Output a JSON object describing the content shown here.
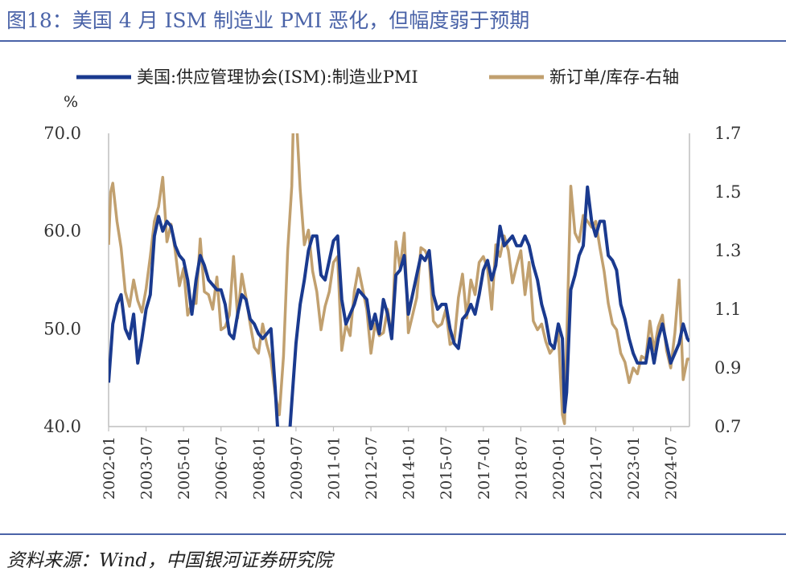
{
  "title": "图18：美国 4 月 ISM 制造业 PMI 恶化，但幅度弱于预期",
  "source": "资料来源：Wind，中国银河证券研究院",
  "chart_data": {
    "type": "line",
    "left_unit_label": "%",
    "legend": [
      {
        "name": "美国:供应管理协会(ISM):制造业PMI",
        "color": "#1a3a8f"
      },
      {
        "name": "新订单/库存-右轴",
        "color": "#c1a06f"
      }
    ],
    "y_left": {
      "min": 40,
      "max": 70,
      "ticks": [
        "40.0",
        "50.0",
        "60.0",
        "70.0"
      ]
    },
    "y_right": {
      "min": 0.7,
      "max": 1.7,
      "ticks": [
        "0.7",
        "0.9",
        "1.1",
        "1.3",
        "1.5",
        "1.7"
      ]
    },
    "x_ticks": [
      "2002-01",
      "2003-07",
      "2005-01",
      "2006-07",
      "2008-01",
      "2009-07",
      "2011-01",
      "2012-07",
      "2014-01",
      "2015-07",
      "2017-01",
      "2018-07",
      "2020-01",
      "2021-07",
      "2023-01",
      "2024-07"
    ],
    "x_range": [
      "2002-01",
      "2025-04"
    ],
    "series": [
      {
        "name": "美国:供应管理协会(ISM):制造业PMI",
        "axis": "left",
        "points": [
          [
            "2002-01",
            44.5
          ],
          [
            "2002-03",
            50.5
          ],
          [
            "2002-05",
            52.5
          ],
          [
            "2002-07",
            53.5
          ],
          [
            "2002-09",
            50.0
          ],
          [
            "2002-11",
            49.0
          ],
          [
            "2003-01",
            51.5
          ],
          [
            "2003-03",
            46.5
          ],
          [
            "2003-05",
            49.0
          ],
          [
            "2003-07",
            52.0
          ],
          [
            "2003-09",
            53.5
          ],
          [
            "2003-11",
            59.5
          ],
          [
            "2004-01",
            61.5
          ],
          [
            "2004-03",
            60.0
          ],
          [
            "2004-05",
            61.0
          ],
          [
            "2004-07",
            60.5
          ],
          [
            "2004-09",
            58.5
          ],
          [
            "2004-11",
            57.5
          ],
          [
            "2005-01",
            57.0
          ],
          [
            "2005-03",
            55.0
          ],
          [
            "2005-05",
            51.5
          ],
          [
            "2005-07",
            55.0
          ],
          [
            "2005-09",
            57.5
          ],
          [
            "2005-11",
            56.5
          ],
          [
            "2006-01",
            55.0
          ],
          [
            "2006-03",
            54.5
          ],
          [
            "2006-05",
            54.0
          ],
          [
            "2006-07",
            54.0
          ],
          [
            "2006-09",
            52.5
          ],
          [
            "2006-11",
            49.5
          ],
          [
            "2007-01",
            49.0
          ],
          [
            "2007-03",
            51.5
          ],
          [
            "2007-05",
            53.5
          ],
          [
            "2007-07",
            53.0
          ],
          [
            "2007-09",
            51.0
          ],
          [
            "2007-11",
            50.5
          ],
          [
            "2008-01",
            49.5
          ],
          [
            "2008-03",
            49.0
          ],
          [
            "2008-05",
            49.5
          ],
          [
            "2008-07",
            50.0
          ],
          [
            "2008-09",
            44.0
          ],
          [
            "2008-11",
            37.0
          ],
          [
            "2009-01",
            35.5
          ],
          [
            "2009-03",
            36.5
          ],
          [
            "2009-05",
            42.5
          ],
          [
            "2009-07",
            48.5
          ],
          [
            "2009-09",
            52.5
          ],
          [
            "2009-11",
            55.0
          ],
          [
            "2010-01",
            58.0
          ],
          [
            "2010-03",
            59.5
          ],
          [
            "2010-05",
            59.5
          ],
          [
            "2010-07",
            55.5
          ],
          [
            "2010-09",
            55.0
          ],
          [
            "2010-11",
            57.0
          ],
          [
            "2011-01",
            59.0
          ],
          [
            "2011-03",
            59.5
          ],
          [
            "2011-05",
            53.0
          ],
          [
            "2011-07",
            50.5
          ],
          [
            "2011-09",
            51.5
          ],
          [
            "2011-11",
            52.5
          ],
          [
            "2012-01",
            54.0
          ],
          [
            "2012-03",
            53.5
          ],
          [
            "2012-05",
            53.0
          ],
          [
            "2012-07",
            50.0
          ],
          [
            "2012-09",
            51.5
          ],
          [
            "2012-11",
            49.5
          ],
          [
            "2013-01",
            53.0
          ],
          [
            "2013-03",
            51.5
          ],
          [
            "2013-05",
            49.0
          ],
          [
            "2013-07",
            55.5
          ],
          [
            "2013-09",
            56.0
          ],
          [
            "2013-11",
            57.5
          ],
          [
            "2014-01",
            51.5
          ],
          [
            "2014-03",
            53.5
          ],
          [
            "2014-05",
            55.5
          ],
          [
            "2014-07",
            57.5
          ],
          [
            "2014-09",
            57.0
          ],
          [
            "2014-11",
            58.0
          ],
          [
            "2015-01",
            53.5
          ],
          [
            "2015-03",
            52.0
          ],
          [
            "2015-05",
            52.5
          ],
          [
            "2015-07",
            52.5
          ],
          [
            "2015-09",
            50.0
          ],
          [
            "2015-11",
            48.5
          ],
          [
            "2016-01",
            48.0
          ],
          [
            "2016-03",
            51.0
          ],
          [
            "2016-05",
            51.5
          ],
          [
            "2016-07",
            52.5
          ],
          [
            "2016-09",
            51.5
          ],
          [
            "2016-11",
            53.5
          ],
          [
            "2017-01",
            56.0
          ],
          [
            "2017-03",
            57.0
          ],
          [
            "2017-05",
            55.0
          ],
          [
            "2017-07",
            56.5
          ],
          [
            "2017-09",
            60.5
          ],
          [
            "2017-11",
            58.5
          ],
          [
            "2018-01",
            59.0
          ],
          [
            "2018-03",
            59.5
          ],
          [
            "2018-05",
            58.5
          ],
          [
            "2018-07",
            58.5
          ],
          [
            "2018-09",
            59.5
          ],
          [
            "2018-11",
            58.5
          ],
          [
            "2019-01",
            56.5
          ],
          [
            "2019-03",
            55.0
          ],
          [
            "2019-05",
            52.5
          ],
          [
            "2019-07",
            51.0
          ],
          [
            "2019-09",
            48.5
          ],
          [
            "2019-11",
            48.0
          ],
          [
            "2020-01",
            50.5
          ],
          [
            "2020-03",
            49.0
          ],
          [
            "2020-04",
            41.5
          ],
          [
            "2020-05",
            43.5
          ],
          [
            "2020-07",
            54.0
          ],
          [
            "2020-09",
            55.5
          ],
          [
            "2020-11",
            57.5
          ],
          [
            "2021-01",
            58.5
          ],
          [
            "2021-03",
            64.5
          ],
          [
            "2021-05",
            61.0
          ],
          [
            "2021-07",
            59.5
          ],
          [
            "2021-09",
            61.0
          ],
          [
            "2021-11",
            61.0
          ],
          [
            "2022-01",
            57.5
          ],
          [
            "2022-03",
            57.0
          ],
          [
            "2022-05",
            56.0
          ],
          [
            "2022-07",
            52.5
          ],
          [
            "2022-09",
            51.0
          ],
          [
            "2022-11",
            49.0
          ],
          [
            "2023-01",
            47.5
          ],
          [
            "2023-03",
            46.5
          ],
          [
            "2023-05",
            46.5
          ],
          [
            "2023-07",
            46.5
          ],
          [
            "2023-09",
            49.0
          ],
          [
            "2023-11",
            46.5
          ],
          [
            "2024-01",
            49.0
          ],
          [
            "2024-03",
            50.5
          ],
          [
            "2024-05",
            48.5
          ],
          [
            "2024-07",
            46.5
          ],
          [
            "2024-09",
            47.5
          ],
          [
            "2024-11",
            48.5
          ],
          [
            "2025-01",
            50.5
          ],
          [
            "2025-03",
            49.0
          ],
          [
            "2025-04",
            48.7
          ]
        ]
      },
      {
        "name": "新订单/库存-右轴",
        "axis": "right",
        "points": [
          [
            "2002-01",
            1.32
          ],
          [
            "2002-02",
            1.5
          ],
          [
            "2002-03",
            1.53
          ],
          [
            "2002-05",
            1.4
          ],
          [
            "2002-07",
            1.31
          ],
          [
            "2002-09",
            1.16
          ],
          [
            "2002-11",
            1.11
          ],
          [
            "2003-01",
            1.2
          ],
          [
            "2003-03",
            1.13
          ],
          [
            "2003-05",
            1.09
          ],
          [
            "2003-07",
            1.17
          ],
          [
            "2003-09",
            1.28
          ],
          [
            "2003-11",
            1.4
          ],
          [
            "2004-01",
            1.45
          ],
          [
            "2004-03",
            1.55
          ],
          [
            "2004-05",
            1.33
          ],
          [
            "2004-07",
            1.39
          ],
          [
            "2004-09",
            1.3
          ],
          [
            "2004-11",
            1.18
          ],
          [
            "2005-01",
            1.24
          ],
          [
            "2005-03",
            1.08
          ],
          [
            "2005-05",
            1.12
          ],
          [
            "2005-07",
            1.12
          ],
          [
            "2005-09",
            1.34
          ],
          [
            "2005-11",
            1.16
          ],
          [
            "2006-01",
            1.15
          ],
          [
            "2006-03",
            1.1
          ],
          [
            "2006-05",
            1.21
          ],
          [
            "2006-07",
            1.03
          ],
          [
            "2006-09",
            1.04
          ],
          [
            "2006-11",
            1.08
          ],
          [
            "2007-01",
            1.28
          ],
          [
            "2007-03",
            1.07
          ],
          [
            "2007-05",
            1.22
          ],
          [
            "2007-07",
            1.14
          ],
          [
            "2007-09",
            1.05
          ],
          [
            "2007-11",
            0.97
          ],
          [
            "2008-01",
            0.95
          ],
          [
            "2008-03",
            1.05
          ],
          [
            "2008-05",
            0.98
          ],
          [
            "2008-07",
            0.93
          ],
          [
            "2008-09",
            0.81
          ],
          [
            "2008-11",
            0.74
          ],
          [
            "2009-01",
            0.94
          ],
          [
            "2009-03",
            1.3
          ],
          [
            "2009-05",
            1.52
          ],
          [
            "2009-06",
            1.82
          ],
          [
            "2009-07",
            1.78
          ],
          [
            "2009-09",
            1.51
          ],
          [
            "2009-11",
            1.32
          ],
          [
            "2010-01",
            1.37
          ],
          [
            "2010-03",
            1.23
          ],
          [
            "2010-05",
            1.16
          ],
          [
            "2010-07",
            1.03
          ],
          [
            "2010-09",
            1.11
          ],
          [
            "2010-11",
            1.16
          ],
          [
            "2011-01",
            1.26
          ],
          [
            "2011-03",
            1.28
          ],
          [
            "2011-05",
            0.96
          ],
          [
            "2011-07",
            1.05
          ],
          [
            "2011-09",
            1.01
          ],
          [
            "2011-11",
            1.16
          ],
          [
            "2012-01",
            1.24
          ],
          [
            "2012-03",
            1.17
          ],
          [
            "2012-05",
            1.1
          ],
          [
            "2012-07",
            0.95
          ],
          [
            "2012-09",
            1.05
          ],
          [
            "2012-11",
            1.01
          ],
          [
            "2013-01",
            1.02
          ],
          [
            "2013-03",
            1.1
          ],
          [
            "2013-05",
            1.0
          ],
          [
            "2013-07",
            1.33
          ],
          [
            "2013-09",
            1.24
          ],
          [
            "2013-11",
            1.36
          ],
          [
            "2014-01",
            1.02
          ],
          [
            "2014-03",
            1.08
          ],
          [
            "2014-05",
            1.14
          ],
          [
            "2014-07",
            1.31
          ],
          [
            "2014-09",
            1.3
          ],
          [
            "2014-11",
            1.27
          ],
          [
            "2015-01",
            1.06
          ],
          [
            "2015-03",
            1.04
          ],
          [
            "2015-05",
            1.05
          ],
          [
            "2015-07",
            1.1
          ],
          [
            "2015-09",
            0.98
          ],
          [
            "2015-11",
            0.99
          ],
          [
            "2016-01",
            1.14
          ],
          [
            "2016-03",
            1.22
          ],
          [
            "2016-05",
            1.07
          ],
          [
            "2016-07",
            1.2
          ],
          [
            "2016-09",
            1.15
          ],
          [
            "2016-11",
            1.26
          ],
          [
            "2017-01",
            1.28
          ],
          [
            "2017-03",
            1.24
          ],
          [
            "2017-05",
            1.1
          ],
          [
            "2017-07",
            1.32
          ],
          [
            "2017-09",
            1.28
          ],
          [
            "2017-11",
            1.35
          ],
          [
            "2018-01",
            1.3
          ],
          [
            "2018-03",
            1.19
          ],
          [
            "2018-05",
            1.25
          ],
          [
            "2018-07",
            1.3
          ],
          [
            "2018-09",
            1.15
          ],
          [
            "2018-11",
            1.26
          ],
          [
            "2019-01",
            1.06
          ],
          [
            "2019-03",
            1.03
          ],
          [
            "2019-05",
            1.05
          ],
          [
            "2019-07",
            0.99
          ],
          [
            "2019-09",
            0.95
          ],
          [
            "2019-11",
            0.97
          ],
          [
            "2020-01",
            1.02
          ],
          [
            "2020-03",
            0.74
          ],
          [
            "2020-04",
            0.71
          ],
          [
            "2020-06",
            1.25
          ],
          [
            "2020-07",
            1.52
          ],
          [
            "2020-09",
            1.36
          ],
          [
            "2020-11",
            1.33
          ],
          [
            "2021-01",
            1.42
          ],
          [
            "2021-03",
            1.4
          ],
          [
            "2021-05",
            1.38
          ],
          [
            "2021-07",
            1.4
          ],
          [
            "2021-09",
            1.31
          ],
          [
            "2021-11",
            1.23
          ],
          [
            "2022-01",
            1.12
          ],
          [
            "2022-03",
            1.05
          ],
          [
            "2022-05",
            1.03
          ],
          [
            "2022-07",
            0.95
          ],
          [
            "2022-09",
            0.92
          ],
          [
            "2022-11",
            0.85
          ],
          [
            "2023-01",
            0.9
          ],
          [
            "2023-03",
            0.88
          ],
          [
            "2023-05",
            0.94
          ],
          [
            "2023-07",
            0.93
          ],
          [
            "2023-09",
            1.06
          ],
          [
            "2023-11",
            0.96
          ],
          [
            "2024-01",
            1.04
          ],
          [
            "2024-03",
            1.08
          ],
          [
            "2024-05",
            0.96
          ],
          [
            "2024-07",
            0.9
          ],
          [
            "2024-09",
            1.02
          ],
          [
            "2024-11",
            1.2
          ],
          [
            "2025-01",
            0.86
          ],
          [
            "2025-03",
            0.93
          ],
          [
            "2025-04",
            0.93
          ]
        ]
      }
    ]
  }
}
